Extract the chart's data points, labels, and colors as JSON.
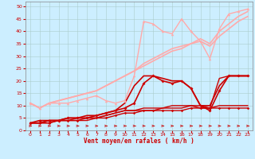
{
  "background_color": "#cceeff",
  "grid_color": "#aacccc",
  "xlabel": "Vent moyen/en rafales ( km/h )",
  "xlabel_color": "#cc0000",
  "tick_color": "#cc0000",
  "xlim": [
    -0.5,
    23.5
  ],
  "ylim": [
    0,
    52
  ],
  "xticks": [
    0,
    1,
    2,
    3,
    4,
    5,
    6,
    7,
    8,
    9,
    10,
    11,
    12,
    13,
    14,
    15,
    16,
    17,
    18,
    19,
    20,
    21,
    22,
    23
  ],
  "yticks": [
    0,
    5,
    10,
    15,
    20,
    25,
    30,
    35,
    40,
    45,
    50
  ],
  "series": [
    {
      "x": [
        0,
        1,
        2,
        3,
        4,
        5,
        6,
        7,
        8,
        9,
        10,
        11,
        12,
        13,
        14,
        15,
        16,
        17,
        18,
        19,
        20,
        21,
        22,
        23
      ],
      "y": [
        11,
        9,
        11,
        11,
        11,
        12,
        13,
        14,
        12,
        11,
        12,
        22,
        44,
        43,
        40,
        39,
        45,
        40,
        36,
        29,
        41,
        47,
        48,
        49
      ],
      "color": "#ffaaaa",
      "lw": 1.0,
      "marker": "^",
      "ms": 2.5
    },
    {
      "x": [
        0,
        1,
        2,
        3,
        4,
        5,
        6,
        7,
        8,
        9,
        10,
        11,
        12,
        13,
        14,
        15,
        16,
        17,
        18,
        19,
        20,
        21,
        22,
        23
      ],
      "y": [
        11,
        9,
        11,
        12,
        13,
        14,
        15,
        16,
        18,
        20,
        22,
        24,
        26,
        28,
        30,
        32,
        33,
        35,
        36,
        34,
        38,
        41,
        44,
        46
      ],
      "color": "#ffaaaa",
      "lw": 1.2,
      "marker": null,
      "ms": 0
    },
    {
      "x": [
        0,
        1,
        2,
        3,
        4,
        5,
        6,
        7,
        8,
        9,
        10,
        11,
        12,
        13,
        14,
        15,
        16,
        17,
        18,
        19,
        20,
        21,
        22,
        23
      ],
      "y": [
        11,
        9,
        11,
        12,
        13,
        14,
        15,
        16,
        18,
        20,
        22,
        24,
        27,
        29,
        31,
        33,
        34,
        35,
        37,
        35,
        40,
        43,
        46,
        48
      ],
      "color": "#ffaaaa",
      "lw": 1.2,
      "marker": null,
      "ms": 0
    },
    {
      "x": [
        0,
        1,
        2,
        3,
        4,
        5,
        6,
        7,
        8,
        9,
        10,
        11,
        12,
        13,
        14,
        15,
        16,
        17,
        18,
        19,
        20,
        21,
        22,
        23
      ],
      "y": [
        3,
        4,
        4,
        4,
        5,
        5,
        5,
        6,
        7,
        8,
        9,
        11,
        19,
        22,
        20,
        19,
        20,
        17,
        10,
        8,
        16,
        22,
        22,
        22
      ],
      "color": "#cc0000",
      "lw": 1.2,
      "marker": "D",
      "ms": 2.0
    },
    {
      "x": [
        0,
        1,
        2,
        3,
        4,
        5,
        6,
        7,
        8,
        9,
        10,
        11,
        12,
        13,
        14,
        15,
        16,
        17,
        18,
        19,
        20,
        21,
        22,
        23
      ],
      "y": [
        3,
        3,
        4,
        4,
        5,
        5,
        6,
        6,
        7,
        8,
        11,
        18,
        22,
        22,
        21,
        20,
        20,
        17,
        10,
        10,
        18,
        22,
        22,
        22
      ],
      "color": "#cc0000",
      "lw": 1.2,
      "marker": null,
      "ms": 0
    },
    {
      "x": [
        0,
        1,
        2,
        3,
        4,
        5,
        6,
        7,
        8,
        9,
        10,
        11,
        12,
        13,
        14,
        15,
        16,
        17,
        18,
        19,
        20,
        21,
        22,
        23
      ],
      "y": [
        3,
        3,
        3,
        4,
        4,
        4,
        4,
        5,
        6,
        7,
        8,
        8,
        9,
        9,
        9,
        10,
        10,
        10,
        9,
        9,
        21,
        22,
        22,
        22
      ],
      "color": "#cc0000",
      "lw": 1.0,
      "marker": null,
      "ms": 0
    },
    {
      "x": [
        0,
        1,
        2,
        3,
        4,
        5,
        6,
        7,
        8,
        9,
        10,
        11,
        12,
        13,
        14,
        15,
        16,
        17,
        18,
        19,
        20,
        21,
        22,
        23
      ],
      "y": [
        3,
        3,
        3,
        4,
        4,
        4,
        5,
        5,
        5,
        6,
        7,
        7,
        8,
        8,
        8,
        8,
        8,
        9,
        9,
        9,
        9,
        9,
        9,
        9
      ],
      "color": "#cc0000",
      "lw": 1.0,
      "marker": "D",
      "ms": 1.8
    },
    {
      "x": [
        0,
        1,
        2,
        3,
        4,
        5,
        6,
        7,
        8,
        9,
        10,
        11,
        12,
        13,
        14,
        15,
        16,
        17,
        18,
        19,
        20,
        21,
        22,
        23
      ],
      "y": [
        3,
        3,
        4,
        4,
        4,
        5,
        5,
        5,
        6,
        7,
        8,
        8,
        8,
        8,
        9,
        9,
        9,
        10,
        10,
        9,
        10,
        10,
        10,
        10
      ],
      "color": "#cc0000",
      "lw": 1.0,
      "marker": null,
      "ms": 0
    }
  ]
}
